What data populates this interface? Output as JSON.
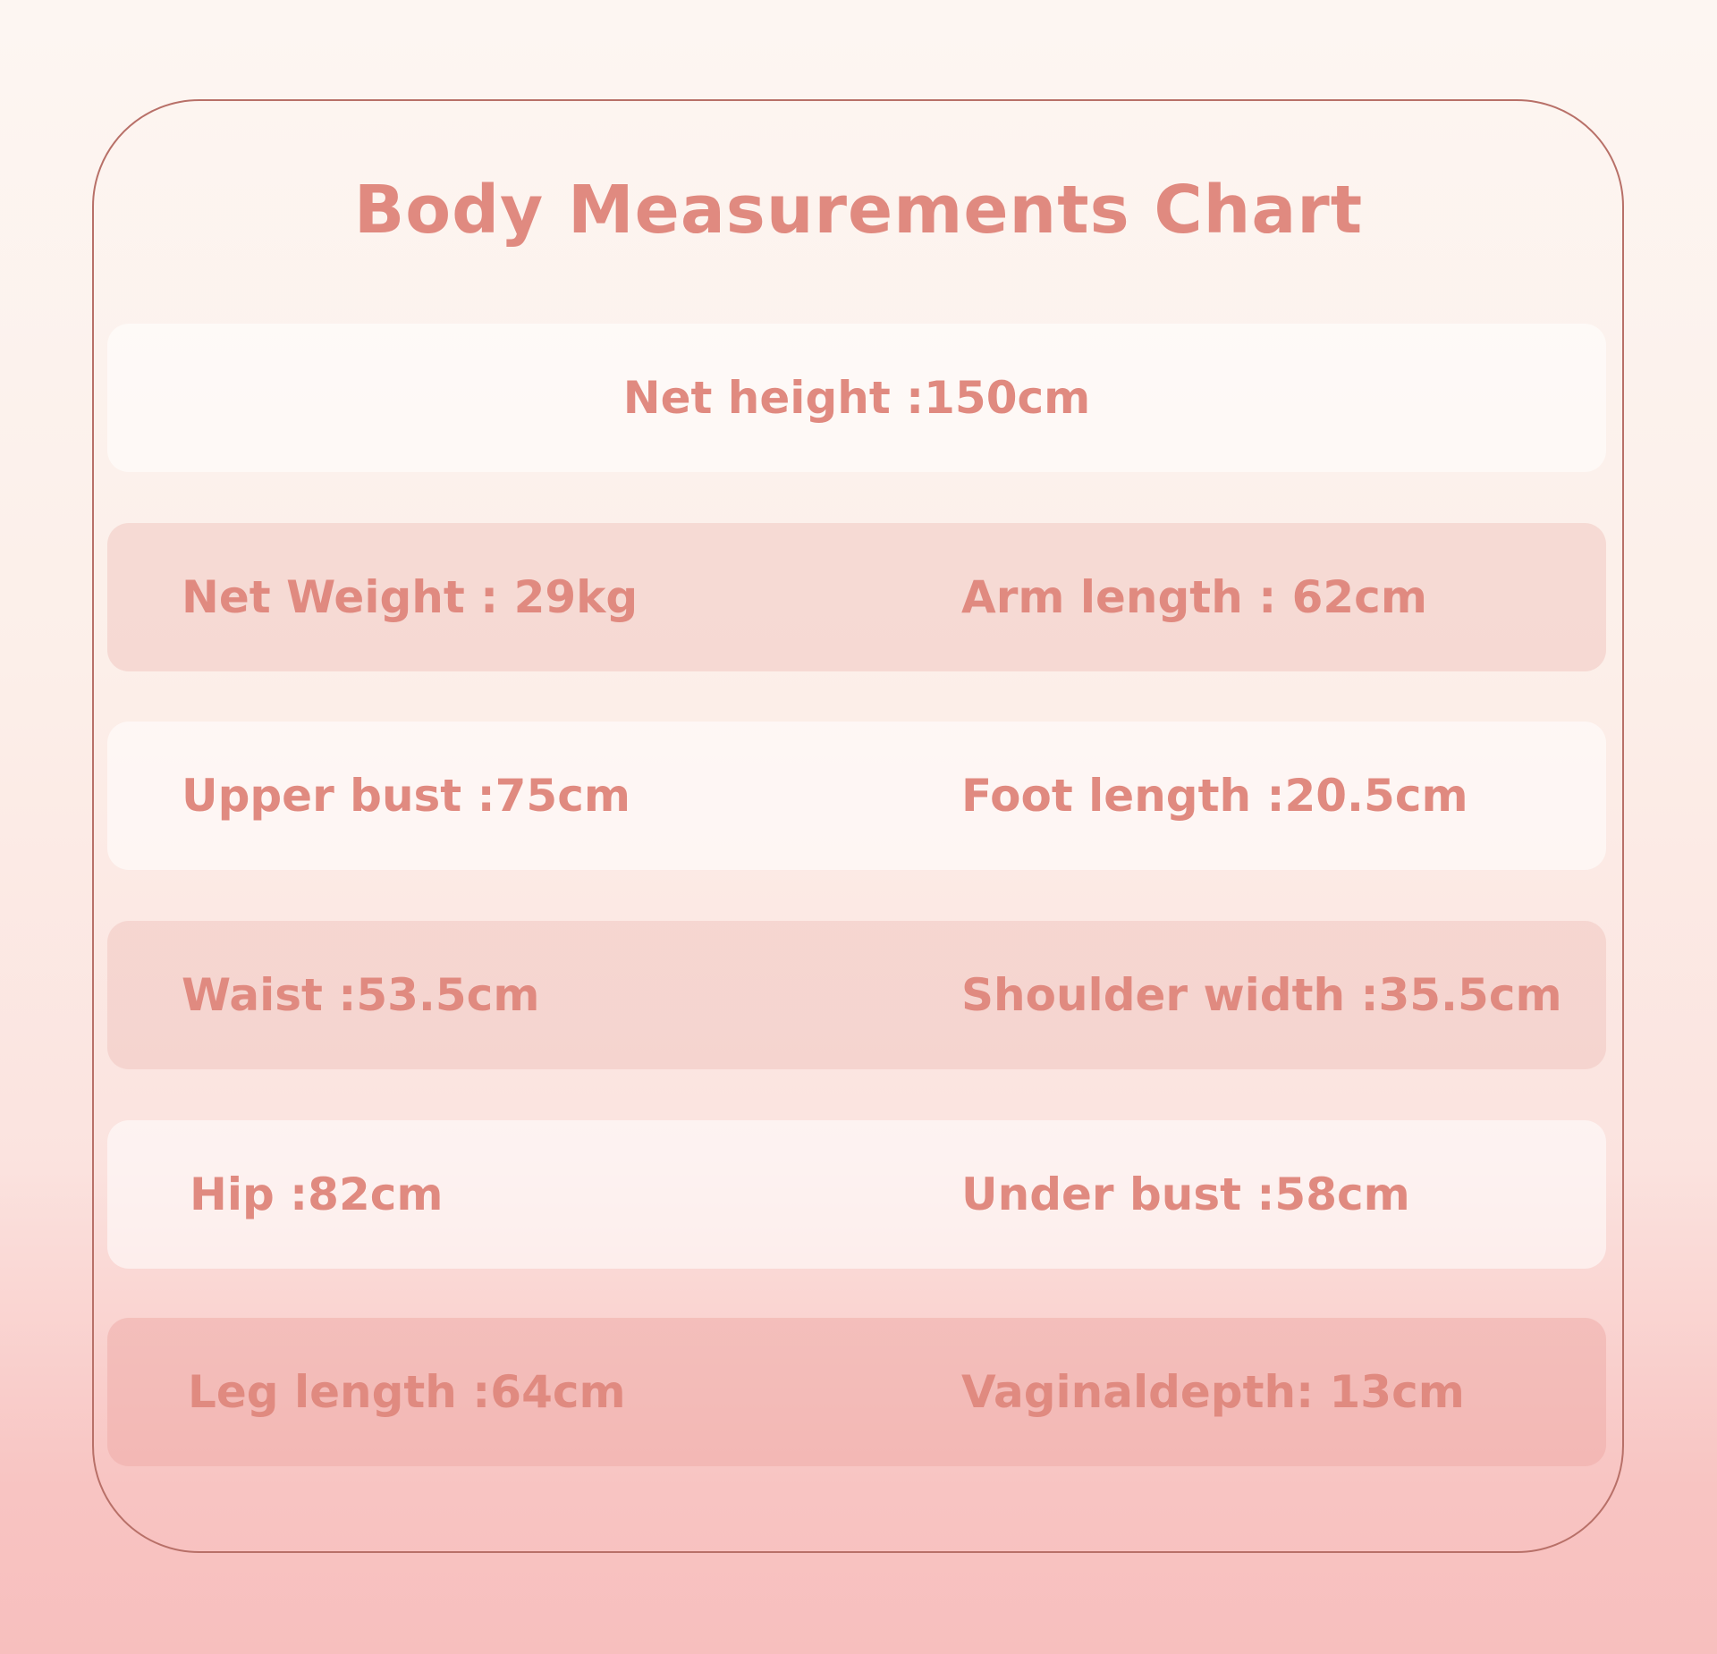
{
  "title": "Body Measurements Chart",
  "rows": [
    {
      "center": "Net height :150cm"
    },
    {
      "left": "Net Weight : 29kg",
      "right": "Arm length : 62cm"
    },
    {
      "left": "Upper bust :75cm",
      "right": "Foot length :20.5cm"
    },
    {
      "left": "Waist :53.5cm",
      "right": "Shoulder width :35.5cm"
    },
    {
      "left": "Hip :82cm",
      "right": "Under bust :58cm"
    },
    {
      "left": "Leg length :64cm",
      "right": "Vaginaldepth: 13cm"
    }
  ],
  "colors": {
    "text": "#e08a80",
    "border": "#b87068"
  }
}
